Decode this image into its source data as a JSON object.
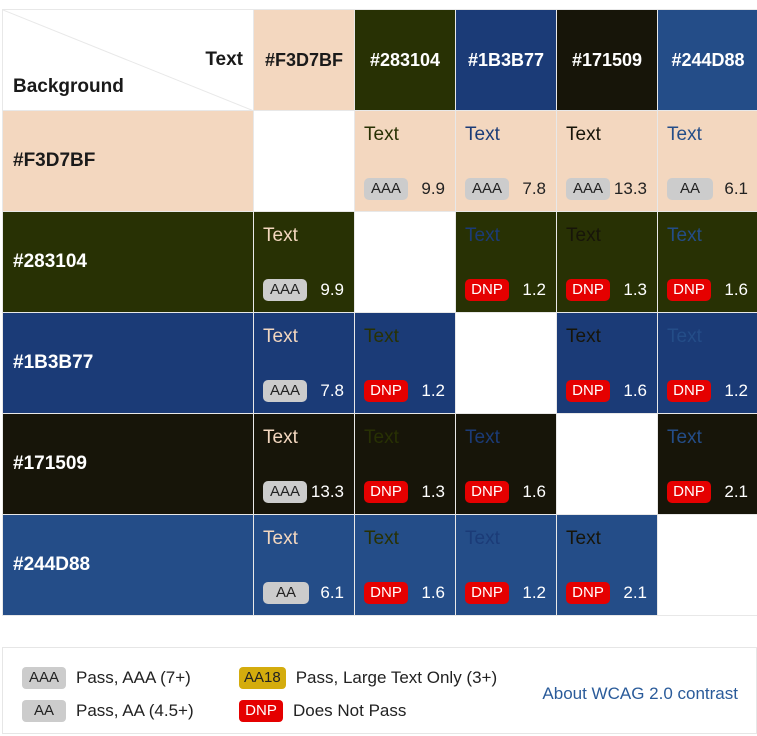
{
  "header": {
    "corner_text": "Text",
    "corner_background": "Background",
    "colors": [
      "#F3D7BF",
      "#283104",
      "#1B3B77",
      "#171509",
      "#244D88"
    ]
  },
  "text_colors": {
    "#F3D7BF": "#3a2a10",
    "#283104": "#283104",
    "#1B3B77": "#1B3B77",
    "#171509": "#171509",
    "#244D88": "#244D88"
  },
  "rows": [
    {
      "bg": "#F3D7BF",
      "cells": [
        null,
        {
          "text": "Text",
          "fg": "#283104",
          "rating": "AAA",
          "ratio": "9.9"
        },
        {
          "text": "Text",
          "fg": "#1B3B77",
          "rating": "AAA",
          "ratio": "7.8"
        },
        {
          "text": "Text",
          "fg": "#171509",
          "rating": "AAA",
          "ratio": "13.3"
        },
        {
          "text": "Text",
          "fg": "#244D88",
          "rating": "AA",
          "ratio": "6.1"
        }
      ]
    },
    {
      "bg": "#283104",
      "cells": [
        {
          "text": "Text",
          "fg": "#F3D7BF",
          "rating": "AAA",
          "ratio": "9.9"
        },
        null,
        {
          "text": "Text",
          "fg": "#1B3B77",
          "rating": "DNP",
          "ratio": "1.2"
        },
        {
          "text": "Text",
          "fg": "#171509",
          "rating": "DNP",
          "ratio": "1.3"
        },
        {
          "text": "Text",
          "fg": "#244D88",
          "rating": "DNP",
          "ratio": "1.6"
        }
      ]
    },
    {
      "bg": "#1B3B77",
      "cells": [
        {
          "text": "Text",
          "fg": "#F3D7BF",
          "rating": "AAA",
          "ratio": "7.8"
        },
        {
          "text": "Text",
          "fg": "#283104",
          "rating": "DNP",
          "ratio": "1.2"
        },
        null,
        {
          "text": "Text",
          "fg": "#171509",
          "rating": "DNP",
          "ratio": "1.6"
        },
        {
          "text": "Text",
          "fg": "#244D88",
          "rating": "DNP",
          "ratio": "1.2"
        }
      ]
    },
    {
      "bg": "#171509",
      "cells": [
        {
          "text": "Text",
          "fg": "#F3D7BF",
          "rating": "AAA",
          "ratio": "13.3"
        },
        {
          "text": "Text",
          "fg": "#283104",
          "rating": "DNP",
          "ratio": "1.3"
        },
        {
          "text": "Text",
          "fg": "#1B3B77",
          "rating": "DNP",
          "ratio": "1.6"
        },
        null,
        {
          "text": "Text",
          "fg": "#244D88",
          "rating": "DNP",
          "ratio": "2.1"
        }
      ]
    },
    {
      "bg": "#244D88",
      "cells": [
        {
          "text": "Text",
          "fg": "#F3D7BF",
          "rating": "AA",
          "ratio": "6.1"
        },
        {
          "text": "Text",
          "fg": "#283104",
          "rating": "DNP",
          "ratio": "1.6"
        },
        {
          "text": "Text",
          "fg": "#1B3B77",
          "rating": "DNP",
          "ratio": "1.2"
        },
        {
          "text": "Text",
          "fg": "#171509",
          "rating": "DNP",
          "ratio": "2.1"
        },
        null
      ]
    }
  ],
  "legend": {
    "aaa_badge": "AAA",
    "aaa_label": "Pass, AAA (7+)",
    "aa_badge": "AA",
    "aa_label": "Pass, AA (4.5+)",
    "aa18_badge": "AA18",
    "aa18_label": "Pass, Large Text Only (3+)",
    "dnp_badge": "DNP",
    "dnp_label": "Does Not Pass",
    "about_link": "About WCAG 2.0 contrast"
  },
  "badge_colors": {
    "AAA": "#cccccc",
    "AA": "#cccccc",
    "AA18": "#d4ac0d",
    "DNP": "#e50000"
  },
  "header_text_color_on": {
    "#F3D7BF": "#1a1a1a",
    "#283104": "#ffffff",
    "#1B3B77": "#ffffff",
    "#171509": "#ffffff",
    "#244D88": "#ffffff"
  }
}
